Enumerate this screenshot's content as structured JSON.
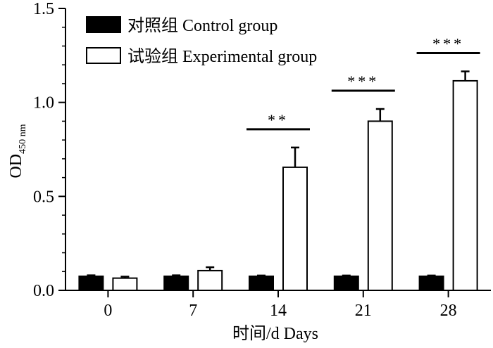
{
  "chart_data": {
    "type": "bar",
    "ylabel": "OD",
    "ylabel_subscript": "450 nm",
    "xlabel": "时间/d  Days",
    "ylim": [
      0,
      1.5
    ],
    "yticks": [
      "0.0",
      "0.5",
      "1.0",
      "1.5"
    ],
    "categories": [
      "0",
      "7",
      "14",
      "21",
      "28"
    ],
    "series": [
      {
        "name": "对照组 Control group",
        "color": "#000000",
        "fill": "#000000",
        "values": [
          0.075,
          0.075,
          0.075,
          0.075,
          0.075
        ],
        "errors": [
          0.005,
          0.005,
          0.004,
          0.004,
          0.004
        ]
      },
      {
        "name": "试验组 Experimental group",
        "color": "#000000",
        "fill": "#ffffff",
        "values": [
          0.065,
          0.105,
          0.655,
          0.9,
          1.115
        ],
        "errors": [
          0.008,
          0.018,
          0.105,
          0.065,
          0.05
        ]
      }
    ],
    "significance": [
      {
        "category": "14",
        "label": "**"
      },
      {
        "category": "21",
        "label": "***"
      },
      {
        "category": "28",
        "label": "***"
      }
    ],
    "legend_position": "top-left",
    "grid": false
  }
}
